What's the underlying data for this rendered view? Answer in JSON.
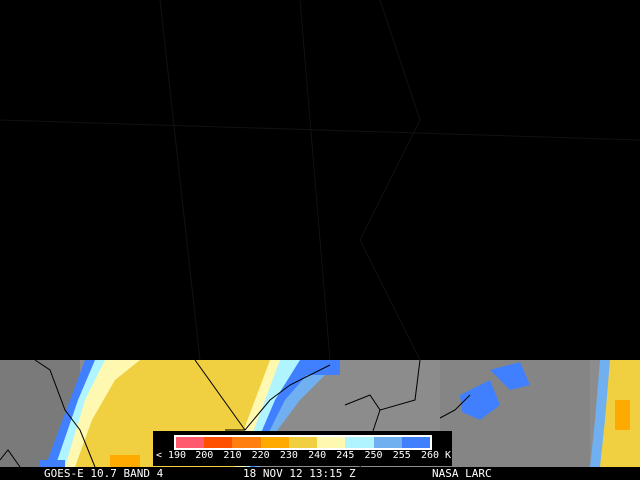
{
  "caption": {
    "satellite": "GOES-E 10.7 BAND 4",
    "datetime": "18 NOV 12 13:15 Z",
    "source": "NASA LARC"
  },
  "legend": {
    "ticks": [
      "< 190",
      "200",
      "210",
      "220",
      "230",
      "240",
      "245",
      "250",
      "255",
      "260 K"
    ],
    "colors": [
      "#ff5a6e",
      "#ff5000",
      "#ff8010",
      "#ffaa00",
      "#f0d040",
      "#fff8b0",
      "#b0f4ff",
      "#70b0f0",
      "#4080ff"
    ]
  },
  "colors": {
    "background": "#000000",
    "cloud_free": "#8c8c8c"
  }
}
